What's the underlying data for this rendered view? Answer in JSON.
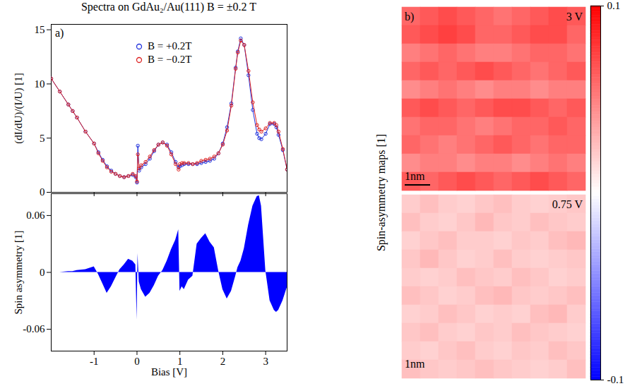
{
  "chart_data": [
    {
      "type": "line",
      "title": "Spectra on GdAu₂/Au(111) B = ±0.2 T",
      "panel": "a)",
      "y_label": "(dI/dU)/(I/U) [1]",
      "x": [
        -2,
        -1.8,
        -1.6,
        -1.5,
        -1.4,
        -1.2,
        -1,
        -0.9,
        -0.8,
        -0.7,
        -0.6,
        -0.5,
        -0.4,
        -0.3,
        -0.2,
        -0.1,
        -0.03,
        0,
        0.02,
        0.05,
        0.1,
        0.2,
        0.3,
        0.4,
        0.5,
        0.6,
        0.7,
        0.8,
        0.9,
        0.97,
        1,
        1.05,
        1.1,
        1.2,
        1.3,
        1.4,
        1.5,
        1.6,
        1.7,
        1.8,
        1.9,
        2,
        2.1,
        2.2,
        2.3,
        2.35,
        2.42,
        2.5,
        2.6,
        2.7,
        2.8,
        2.85,
        2.9,
        3,
        3.1,
        3.2,
        3.25,
        3.3,
        3.4,
        3.5
      ],
      "series": [
        {
          "name": "B = +0.2T",
          "color": "#2233dd",
          "marker": "circle",
          "values": [
            10.5,
            9.3,
            8.1,
            7.5,
            6.9,
            5.6,
            4.5,
            3.7,
            3.0,
            2.4,
            2.0,
            1.7,
            1.5,
            1.4,
            1.5,
            1.6,
            1.4,
            0.9,
            4.3,
            2.0,
            2.3,
            2.6,
            3.1,
            3.8,
            4.4,
            4.6,
            4.4,
            3.7,
            2.8,
            2.3,
            2.4,
            2.5,
            2.6,
            2.6,
            2.6,
            2.6,
            2.7,
            2.8,
            2.9,
            3.1,
            3.6,
            4.5,
            6.0,
            8.2,
            11.5,
            13.0,
            14.2,
            13.6,
            10.8,
            7.6,
            5.4,
            5.0,
            4.9,
            5.4,
            6.3,
            6.3,
            6.0,
            5.3,
            3.9,
            2.1
          ]
        },
        {
          "name": "B = −0.2T",
          "color": "#dd2222",
          "marker": "circle",
          "values": [
            10.5,
            9.3,
            8.1,
            7.5,
            6.9,
            5.6,
            4.5,
            3.6,
            2.9,
            2.3,
            1.9,
            1.7,
            1.5,
            1.4,
            1.5,
            1.7,
            1.5,
            1.0,
            3.5,
            2.2,
            2.5,
            2.8,
            3.3,
            3.9,
            4.4,
            4.6,
            4.3,
            3.5,
            2.6,
            2.1,
            2.6,
            2.7,
            2.7,
            2.7,
            2.6,
            2.7,
            2.9,
            3.0,
            3.1,
            3.3,
            3.6,
            4.4,
            5.7,
            8.0,
            11.4,
            12.9,
            14.0,
            13.6,
            11.2,
            8.3,
            6.2,
            5.8,
            5.6,
            5.9,
            6.4,
            6.4,
            6.2,
            5.6,
            4.0,
            2.1
          ]
        }
      ],
      "xlim": [
        -2,
        3.5
      ],
      "xticks": [
        -1,
        0,
        1,
        2,
        3
      ],
      "ylim": [
        0,
        15.5
      ],
      "yticks": [
        0,
        5,
        10,
        15
      ],
      "tick_labels": "y",
      "legend": "top"
    },
    {
      "type": "area",
      "x_label": "Bias [V]",
      "y_label": "Spin asymmetry [1]",
      "x": [
        -2,
        -1.8,
        -1.6,
        -1.5,
        -1.4,
        -1.2,
        -1,
        -0.9,
        -0.8,
        -0.7,
        -0.6,
        -0.5,
        -0.4,
        -0.3,
        -0.2,
        -0.1,
        -0.03,
        0,
        0.02,
        0.05,
        0.1,
        0.2,
        0.3,
        0.4,
        0.5,
        0.6,
        0.7,
        0.8,
        0.9,
        0.97,
        1,
        1.05,
        1.1,
        1.2,
        1.3,
        1.4,
        1.5,
        1.6,
        1.7,
        1.8,
        1.9,
        2,
        2.1,
        2.2,
        2.3,
        2.35,
        2.42,
        2.5,
        2.6,
        2.7,
        2.8,
        2.85,
        2.9,
        3,
        3.1,
        3.2,
        3.25,
        3.3,
        3.4,
        3.5
      ],
      "values": [
        0,
        0,
        0.001,
        0.001,
        0.002,
        0.003,
        0.006,
        -0.002,
        -0.012,
        -0.022,
        -0.015,
        -0.006,
        0.003,
        0.008,
        0.014,
        0.012,
        0.008,
        -0.05,
        0.02,
        -0.01,
        -0.018,
        -0.026,
        -0.022,
        -0.014,
        -0.004,
        0.002,
        0.012,
        0.024,
        0.034,
        0.045,
        -0.02,
        -0.015,
        -0.018,
        -0.008,
        -0.004,
        0.03,
        0.036,
        0.041,
        0.032,
        0.026,
        0.002,
        -0.018,
        -0.028,
        -0.02,
        -0.004,
        0.005,
        0.012,
        0.025,
        0.05,
        0.07,
        0.08,
        0.081,
        0.07,
        0.002,
        -0.03,
        -0.04,
        -0.042,
        -0.04,
        -0.03,
        -0.016
      ],
      "color": "#0000ff",
      "xlim": [
        -2,
        3.5
      ],
      "xticks": [
        {
          "value": -1,
          "label": "-1"
        },
        0,
        1,
        2,
        3
      ],
      "ylim": [
        -0.083,
        0.083
      ],
      "yticks": [
        {
          "value": -0.06,
          "label": "-0.06"
        },
        0,
        0.06
      ]
    },
    {
      "type": "heatmap",
      "panel": "b)",
      "y_label": "Spin-asymmetry maps [1]",
      "annotations": [
        "3 V",
        "1nm"
      ],
      "cells": [
        [
          0.06,
          0.065,
          0.07,
          0.065,
          0.06,
          0.055,
          0.06,
          0.065,
          0.07,
          0.065
        ],
        [
          0.065,
          0.07,
          0.075,
          0.07,
          0.06,
          0.06,
          0.065,
          0.07,
          0.07,
          0.06
        ],
        [
          0.05,
          0.055,
          0.06,
          0.055,
          0.05,
          0.05,
          0.055,
          0.06,
          0.06,
          0.055
        ],
        [
          0.06,
          0.065,
          0.06,
          0.065,
          0.07,
          0.065,
          0.06,
          0.055,
          0.06,
          0.065
        ],
        [
          0.045,
          0.05,
          0.055,
          0.05,
          0.045,
          0.05,
          0.05,
          0.045,
          0.05,
          0.05
        ],
        [
          0.065,
          0.07,
          0.065,
          0.06,
          0.065,
          0.07,
          0.07,
          0.065,
          0.06,
          0.065
        ],
        [
          0.055,
          0.06,
          0.06,
          0.055,
          0.05,
          0.055,
          0.06,
          0.06,
          0.065,
          0.06
        ],
        [
          0.06,
          0.055,
          0.05,
          0.055,
          0.06,
          0.065,
          0.06,
          0.055,
          0.06,
          0.06
        ],
        [
          0.045,
          0.05,
          0.05,
          0.045,
          0.05,
          0.05,
          0.045,
          0.05,
          0.055,
          0.05
        ],
        [
          0.065,
          0.06,
          0.065,
          0.07,
          0.065,
          0.06,
          0.065,
          0.07,
          0.065,
          0.06
        ]
      ],
      "colorbar": {
        "range": [
          -0.1,
          0.1
        ],
        "ticks": [
          {
            "value": -0.1,
            "label": "-0.1"
          },
          0.1
        ],
        "colors": [
          "#0000ff",
          "#ffffff",
          "#ff0000"
        ]
      }
    },
    {
      "type": "heatmap",
      "annotations": [
        "0.75 V",
        "1nm"
      ],
      "cells": [
        [
          0.02,
          0.025,
          0.02,
          0.018,
          0.022,
          0.025,
          0.02,
          0.018,
          0.02,
          0.022
        ],
        [
          0.025,
          0.02,
          0.018,
          0.022,
          0.028,
          0.022,
          0.02,
          0.025,
          0.022,
          0.02
        ],
        [
          0.018,
          0.022,
          0.025,
          0.02,
          0.02,
          0.018,
          0.022,
          0.02,
          0.025,
          0.028
        ],
        [
          0.022,
          0.028,
          0.022,
          0.018,
          0.02,
          0.025,
          0.02,
          0.018,
          0.02,
          0.022
        ],
        [
          0.02,
          0.018,
          0.02,
          0.025,
          0.022,
          0.02,
          0.025,
          0.022,
          0.018,
          0.02
        ],
        [
          0.025,
          0.022,
          0.018,
          0.02,
          0.025,
          0.028,
          0.022,
          0.02,
          0.022,
          0.025
        ],
        [
          0.018,
          0.02,
          0.025,
          0.022,
          0.018,
          0.02,
          0.018,
          0.025,
          0.028,
          0.02
        ],
        [
          0.022,
          0.025,
          0.02,
          0.018,
          0.022,
          0.02,
          0.025,
          0.022,
          0.02,
          0.018
        ],
        [
          0.02,
          0.018,
          0.022,
          0.025,
          0.02,
          0.018,
          0.022,
          0.02,
          0.025,
          0.022
        ],
        [
          0.025,
          0.022,
          0.02,
          0.022,
          0.025,
          0.022,
          0.02,
          0.018,
          0.02,
          0.025
        ]
      ]
    }
  ]
}
